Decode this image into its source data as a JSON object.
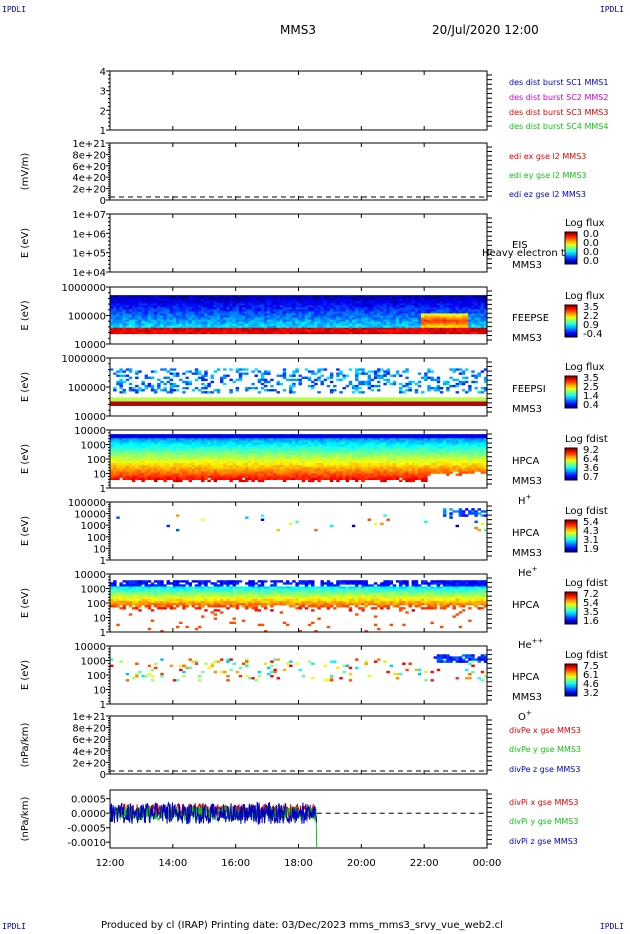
{
  "corners": {
    "tl": "IPDLI",
    "tr": "IPDLI",
    "bl": "IPDLI",
    "br": "IPDLI"
  },
  "header": {
    "spacecraft": "MMS3",
    "datetime": "20/Jul/2020 12:00"
  },
  "footer": {
    "text": "Produced by cl (IRAP)   Printing date: 03/Dec/2023   mms_mms3_srvy_vue_web2.cl"
  },
  "colors": {
    "red": "#e00000",
    "green": "#10c010",
    "blue": "#0000c0",
    "magenta": "#d000d0"
  },
  "x_axis": {
    "ticks": [
      "12:00",
      "14:00",
      "16:00",
      "18:00",
      "20:00",
      "22:00",
      "00:00"
    ]
  },
  "chart_data": [
    {
      "type": "line",
      "panel": "des-dist-burst",
      "ylabel": "",
      "ylim": [
        0.5,
        4.5
      ],
      "yticks": [
        "1",
        "2",
        "3",
        "4"
      ],
      "legend": [
        {
          "text": "des dist burst SC1 MMS1",
          "color": "blue"
        },
        {
          "text": "des dist burst SC2 MMS2",
          "color": "magenta"
        },
        {
          "text": "des dist burst SC3 MMS3",
          "color": "red"
        },
        {
          "text": "des dist burst SC4 MMS4",
          "color": "green"
        }
      ],
      "series": []
    },
    {
      "type": "line",
      "panel": "edi-e",
      "ylabel": "(mV/m)",
      "yticks": [
        "0",
        "2e+20",
        "4e+20",
        "6e+20",
        "8e+20",
        "1e+21"
      ],
      "legend": [
        {
          "text": "edi ex gse l2 MMS3",
          "color": "red"
        },
        {
          "text": "edi ey gse l2 MMS3",
          "color": "green"
        },
        {
          "text": "edi ez gse l2 MMS3",
          "color": "blue"
        }
      ],
      "series": []
    },
    {
      "type": "heatmap",
      "panel": "eis",
      "ylabel": "E (eV)",
      "yticks": [
        "1e+04",
        "1e+05",
        "1e+06",
        "1e+07"
      ],
      "instrument": "EIS",
      "sc": "MMS3",
      "overlay": "Heavy electron to",
      "colorbar": {
        "title": "Log flux",
        "ticks": [
          "0.0",
          "0.0",
          "0.0",
          "0.0"
        ]
      }
    },
    {
      "type": "heatmap",
      "panel": "feepse",
      "ylabel": "E (eV)",
      "yticks": [
        "10000",
        "100000",
        "1000000"
      ],
      "instrument": "FEEPSE",
      "sc": "MMS3",
      "colorbar": {
        "title": "Log flux",
        "ticks": [
          "3.5",
          "2.2",
          "0.9",
          "-0.4"
        ]
      }
    },
    {
      "type": "heatmap",
      "panel": "feepsi",
      "ylabel": "E (eV)",
      "yticks": [
        "10000",
        "100000",
        "1000000"
      ],
      "instrument": "FEEPSI",
      "sc": "MMS3",
      "colorbar": {
        "title": "Log flux",
        "ticks": [
          "3.5",
          "2.5",
          "1.4",
          "0.4"
        ]
      }
    },
    {
      "type": "heatmap",
      "panel": "hpca-h",
      "ylabel": "E (eV)",
      "yticks": [
        "1",
        "10",
        "100",
        "1000",
        "10000"
      ],
      "instrument": "HPCA",
      "sc": "MMS3",
      "species": "H",
      "charge": "+",
      "colorbar": {
        "title": "Log fdist",
        "ticks": [
          "9.2",
          "6.4",
          "3.6",
          "0.7"
        ]
      }
    },
    {
      "type": "heatmap",
      "panel": "hpca-he",
      "ylabel": "E (eV)",
      "yticks": [
        "1",
        "10",
        "100",
        "1000",
        "10000",
        "100000"
      ],
      "instrument": "HPCA",
      "sc": "MMS3",
      "species": "He",
      "charge": "+",
      "colorbar": {
        "title": "Log fdist",
        "ticks": [
          "5.4",
          "4.3",
          "3.1",
          "1.9"
        ]
      }
    },
    {
      "type": "heatmap",
      "panel": "hpca-hepp",
      "ylabel": "E (eV)",
      "yticks": [
        "1",
        "10",
        "100",
        "1000",
        "10000"
      ],
      "instrument": "HPCA",
      "sc": "",
      "species": "He",
      "charge": "++",
      "colorbar": {
        "title": "Log fdist",
        "ticks": [
          "7.2",
          "5.4",
          "3.5",
          "1.6"
        ]
      }
    },
    {
      "type": "heatmap",
      "panel": "hpca-o",
      "ylabel": "E (eV)",
      "yticks": [
        "1",
        "10",
        "100",
        "1000",
        "10000"
      ],
      "instrument": "HPCA",
      "sc": "MMS3",
      "species": "O",
      "charge": "+",
      "colorbar": {
        "title": "Log fdist",
        "ticks": [
          "7.5",
          "6.1",
          "4.6",
          "3.2"
        ]
      }
    },
    {
      "type": "line",
      "panel": "divpe",
      "ylabel": "(nPa/km)",
      "yticks": [
        "0",
        "2e+20",
        "4e+20",
        "6e+20",
        "8e+20",
        "1e+21"
      ],
      "legend": [
        {
          "text": "divPe x gse MMS3",
          "color": "red"
        },
        {
          "text": "divPe y gse MMS3",
          "color": "green"
        },
        {
          "text": "divPe z gse MMS3",
          "color": "blue"
        }
      ],
      "series": []
    },
    {
      "type": "line",
      "panel": "divpi",
      "ylabel": "(nPa/km)",
      "ylim": [
        -0.0012,
        0.0008
      ],
      "yticks": [
        "-0.0010",
        "-0.0005",
        "0.0000",
        "0.0005"
      ],
      "legend": [
        {
          "text": "divPi x gse MMS3",
          "color": "red"
        },
        {
          "text": "divPi y gse MMS3",
          "color": "green"
        },
        {
          "text": "divPi z gse MMS3",
          "color": "blue"
        }
      ],
      "data_end_time": "18:35"
    }
  ]
}
